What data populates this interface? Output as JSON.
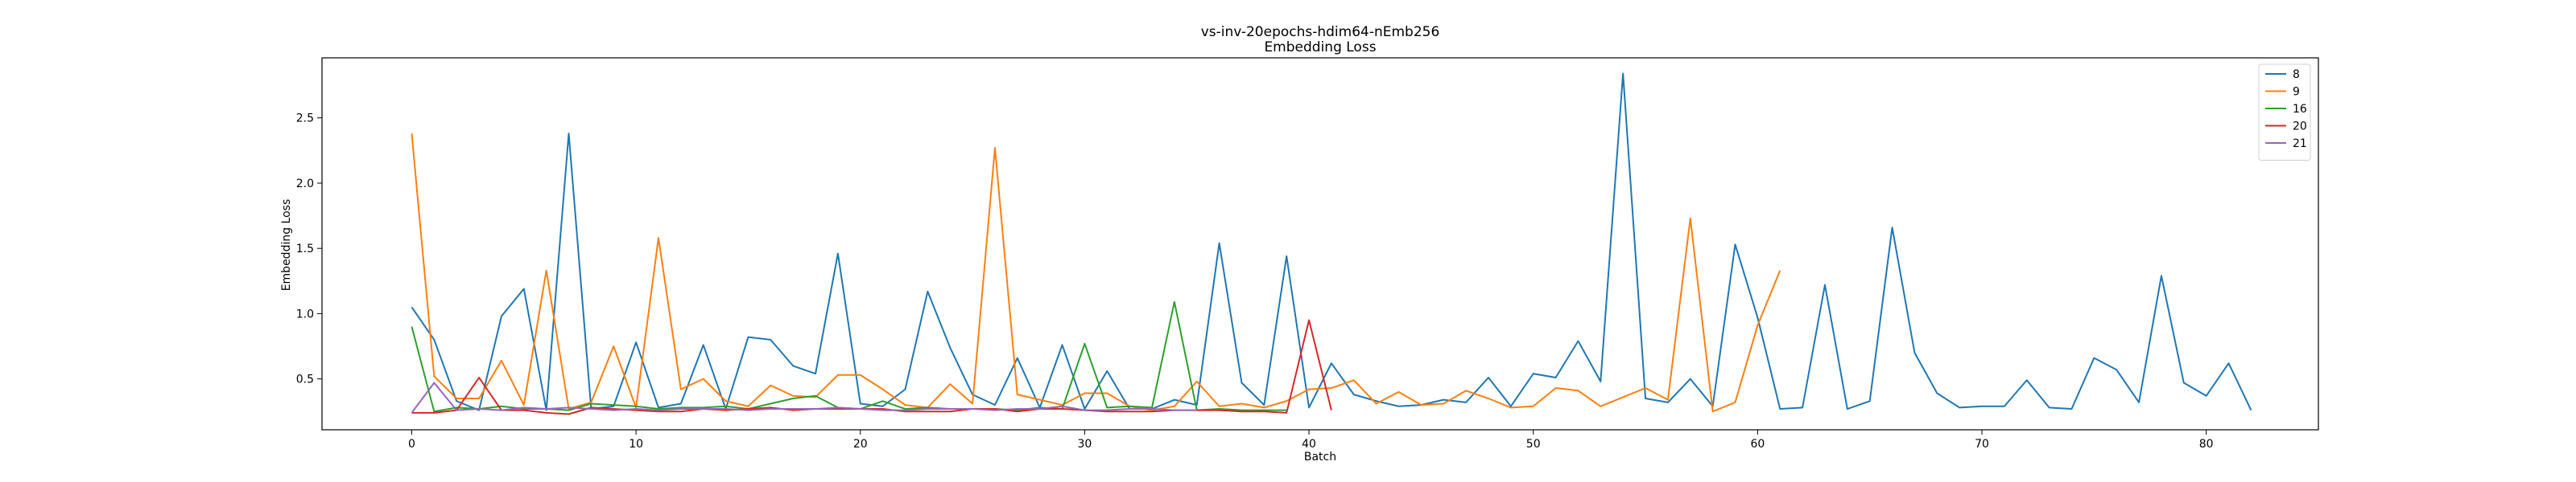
{
  "chart_data": {
    "type": "line",
    "title": "vs-inv-20epochs-hdim64-nEmb256",
    "subtitle": "Embedding Loss",
    "xlabel": "Batch",
    "ylabel": "Embedding Loss",
    "xlim": [
      -4,
      85
    ],
    "ylim": [
      0.11,
      2.96
    ],
    "xticks": [
      0,
      10,
      20,
      30,
      40,
      50,
      60,
      70,
      80
    ],
    "yticks": [
      0.5,
      1.0,
      1.5,
      2.0,
      2.5
    ],
    "ytick_labels": [
      "0.5",
      "1.0",
      "1.5",
      "2.0",
      "2.5"
    ],
    "grid": false,
    "legend_position": "top-right",
    "series": [
      {
        "name": "8",
        "color": "#1f77b4",
        "values": [
          1.05,
          0.8,
          0.33,
          0.26,
          0.98,
          1.19,
          0.26,
          2.38,
          0.27,
          0.29,
          0.78,
          0.28,
          0.31,
          0.76,
          0.27,
          0.82,
          0.8,
          0.6,
          0.54,
          1.46,
          0.31,
          0.29,
          0.42,
          1.17,
          0.74,
          0.38,
          0.3,
          0.66,
          0.28,
          0.76,
          0.27,
          0.56,
          0.27,
          0.27,
          0.34,
          0.3,
          1.54,
          0.47,
          0.3,
          1.44,
          0.28,
          0.62,
          0.38,
          0.33,
          0.29,
          0.3,
          0.34,
          0.32,
          0.51,
          0.29,
          0.54,
          0.51,
          0.79,
          0.48,
          2.84,
          0.35,
          0.32,
          0.5,
          0.29,
          1.53,
          0.97,
          0.27,
          0.28,
          1.22,
          0.27,
          0.33,
          1.66,
          0.7,
          0.39,
          0.28,
          0.29,
          0.29,
          0.49,
          0.28,
          0.27,
          0.66,
          0.57,
          0.32,
          1.29,
          0.47,
          0.37,
          0.62,
          0.26
        ]
      },
      {
        "name": "9",
        "color": "#ff7f0e",
        "values": [
          2.38,
          0.52,
          0.35,
          0.35,
          0.64,
          0.3,
          1.33,
          0.27,
          0.32,
          0.75,
          0.28,
          1.58,
          0.42,
          0.5,
          0.33,
          0.29,
          0.45,
          0.37,
          0.36,
          0.53,
          0.53,
          0.42,
          0.3,
          0.28,
          0.46,
          0.31,
          2.27,
          0.38,
          0.34,
          0.3,
          0.39,
          0.39,
          0.29,
          0.26,
          0.29,
          0.48,
          0.29,
          0.31,
          0.28,
          0.33,
          0.42,
          0.43,
          0.49,
          0.31,
          0.4,
          0.3,
          0.31,
          0.41,
          0.35,
          0.28,
          0.29,
          0.43,
          0.41,
          0.29,
          0.36,
          0.43,
          0.34,
          1.73,
          0.25,
          0.32,
          0.91,
          1.33
        ]
      },
      {
        "name": "16",
        "color": "#2ca02c",
        "values": [
          0.9,
          0.25,
          0.28,
          0.27,
          0.29,
          0.27,
          0.27,
          0.26,
          0.31,
          0.3,
          0.29,
          0.27,
          0.28,
          0.28,
          0.29,
          0.27,
          0.31,
          0.35,
          0.37,
          0.28,
          0.27,
          0.33,
          0.27,
          0.28,
          0.27,
          0.27,
          0.27,
          0.26,
          0.28,
          0.27,
          0.77,
          0.28,
          0.29,
          0.28,
          1.09,
          0.26,
          0.27,
          0.26,
          0.26,
          0.26
        ]
      },
      {
        "name": "20",
        "color": "#d62728",
        "values": [
          0.24,
          0.24,
          0.26,
          0.51,
          0.26,
          0.26,
          0.24,
          0.23,
          0.28,
          0.27,
          0.26,
          0.25,
          0.25,
          0.27,
          0.26,
          0.27,
          0.28,
          0.26,
          0.27,
          0.27,
          0.27,
          0.27,
          0.25,
          0.25,
          0.25,
          0.27,
          0.27,
          0.25,
          0.27,
          0.27,
          0.26,
          0.25,
          0.25,
          0.25,
          0.26,
          0.26,
          0.26,
          0.25,
          0.25,
          0.24,
          0.95,
          0.26
        ]
      },
      {
        "name": "21",
        "color": "#9467bd",
        "values": [
          0.24,
          0.47,
          0.26,
          0.27,
          0.26,
          0.28,
          0.27,
          0.28,
          0.27,
          0.26,
          0.27,
          0.26,
          0.27,
          0.27,
          0.27,
          0.26,
          0.27,
          0.27,
          0.27,
          0.28,
          0.27,
          0.26,
          0.26,
          0.27,
          0.27,
          0.27,
          0.26,
          0.27,
          0.27,
          0.29,
          0.26,
          0.26,
          0.27,
          0.27,
          0.26,
          0.26
        ]
      }
    ]
  }
}
